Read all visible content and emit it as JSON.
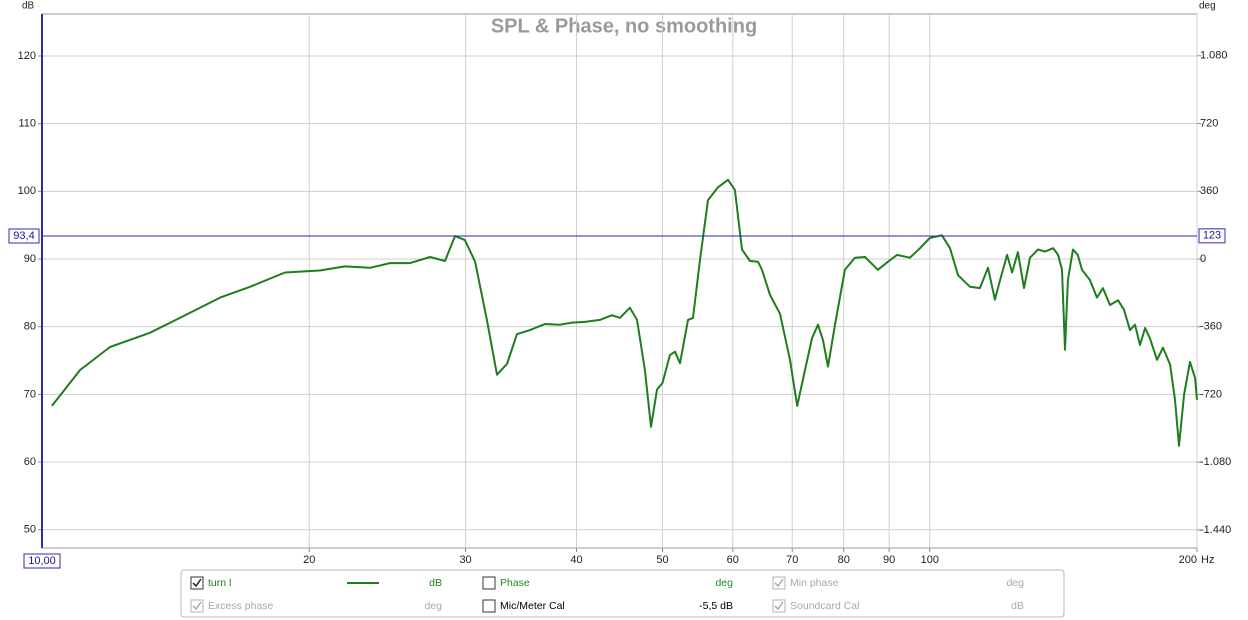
{
  "chart_data": {
    "type": "line",
    "title": "SPL & Phase, no smoothing",
    "x_unit": "Hz",
    "y_unit": "dB",
    "y2_unit": "deg",
    "log_x": true,
    "grid": true,
    "xlim": [
      10,
      200
    ],
    "xticks": [
      20,
      30,
      40,
      50,
      60,
      70,
      80,
      90,
      100,
      200
    ],
    "ylim": [
      47.3,
      126.2
    ],
    "yticks": [
      50,
      60,
      70,
      80,
      90,
      100,
      110,
      120
    ],
    "y2lim": [
      -1536,
      1302
    ],
    "y2ticks": [
      {
        "value": 1080,
        "label": "1.080"
      },
      720,
      360,
      0,
      -360,
      -720,
      {
        "value": -1080,
        "label": "-1.080"
      },
      {
        "value": -1440,
        "label": "-1.440"
      }
    ],
    "cursor": {
      "x": {
        "value": 10,
        "label": "10,00"
      },
      "y": {
        "value": 93.4,
        "label": "93,4"
      },
      "y2": 123
    },
    "series": [
      {
        "name": "turn l",
        "unit": "dB",
        "checked": true,
        "color": "#1e7d1e",
        "x": [
          10.26,
          11.04,
          11.93,
          13.23,
          14.3,
          15.87,
          17.15,
          18.78,
          20.56,
          21.94,
          23.42,
          24.66,
          25.97,
          27.36,
          28.44,
          29.19,
          29.95,
          30.75,
          31.71,
          32.55,
          33.4,
          34.28,
          35.46,
          36.86,
          38.33,
          39.54,
          40.89,
          42.5,
          43.86,
          44.77,
          45.95,
          46.8,
          47.77,
          48.53,
          49.29,
          50.0,
          50.97,
          51.65,
          52.32,
          53.41,
          54.11,
          55.11,
          56.26,
          57.74,
          59.25,
          60.33,
          61.45,
          62.74,
          64.05,
          64.72,
          66.07,
          67.81,
          69.6,
          70.9,
          72.36,
          73.68,
          74.83,
          75.81,
          76.8,
          78.2,
          80.25,
          82.36,
          84.53,
          87.42,
          89.74,
          91.86,
          94.99,
          97.5,
          100,
          103.2,
          105.4,
          107.6,
          111.0,
          113.9,
          116.3,
          118.4,
          120.0,
          122.2,
          123.8,
          125.7,
          127.7,
          129.7,
          132.4,
          134.8,
          137.7,
          139.5,
          140.9,
          142.0,
          143.1,
          145.0,
          146.8,
          148.4,
          151.5,
          154.3,
          156.7,
          159.6,
          163.0,
          165.5,
          168.1,
          170.3,
          172.5,
          174.8,
          177.0,
          180.3,
          183.1,
          186.5,
          188.9,
          190.9,
          193.4,
          196.4,
          199.0,
          200
        ],
        "values": [
          68.3,
          73.6,
          77.0,
          79.1,
          81.3,
          84.3,
          85.9,
          88.0,
          88.3,
          88.9,
          88.7,
          89.4,
          89.4,
          90.3,
          89.7,
          93.4,
          92.8,
          89.6,
          81.0,
          72.9,
          74.5,
          78.9,
          79.5,
          80.4,
          80.3,
          80.6,
          80.7,
          81.0,
          81.7,
          81.3,
          82.8,
          81.0,
          73.6,
          65.2,
          70.7,
          71.7,
          75.8,
          76.3,
          74.6,
          81.0,
          81.3,
          89.9,
          98.7,
          100.6,
          101.7,
          100.2,
          91.4,
          89.7,
          89.6,
          88.4,
          84.7,
          81.9,
          75.1,
          68.3,
          73.6,
          78.3,
          80.3,
          78.0,
          74.1,
          80.3,
          88.4,
          90.2,
          90.3,
          88.4,
          89.6,
          90.6,
          90.2,
          91.6,
          93.1,
          93.5,
          91.6,
          87.6,
          85.9,
          85.7,
          88.7,
          84.0,
          86.9,
          90.6,
          88.0,
          91.0,
          85.7,
          90.2,
          91.4,
          91.1,
          91.6,
          90.6,
          88.4,
          76.6,
          86.9,
          91.4,
          90.6,
          88.4,
          86.9,
          84.3,
          85.7,
          83.2,
          83.9,
          82.5,
          79.5,
          80.3,
          77.3,
          79.8,
          78.3,
          75.1,
          76.9,
          74.4,
          69.2,
          62.4,
          70.0,
          74.8,
          72.4,
          69.2
        ]
      }
    ],
    "legend_items": [
      {
        "name": "Phase",
        "unit": "deg",
        "checked": false,
        "enabled": true,
        "color": "#1e8c1e"
      },
      {
        "name": "Min phase",
        "unit": "deg",
        "checked": true,
        "enabled": false,
        "color": "#a8a8a8"
      },
      {
        "name": "Excess phase",
        "unit": "deg",
        "checked": true,
        "enabled": false,
        "color": "#a8a8a8"
      },
      {
        "name": "Mic/Meter Cal",
        "unit": "-5,5 dB",
        "checked": false,
        "enabled": true,
        "color": "#000000"
      },
      {
        "name": "Soundcard Cal",
        "unit": "dB",
        "checked": true,
        "enabled": false,
        "color": "#a8a8a8"
      }
    ]
  }
}
